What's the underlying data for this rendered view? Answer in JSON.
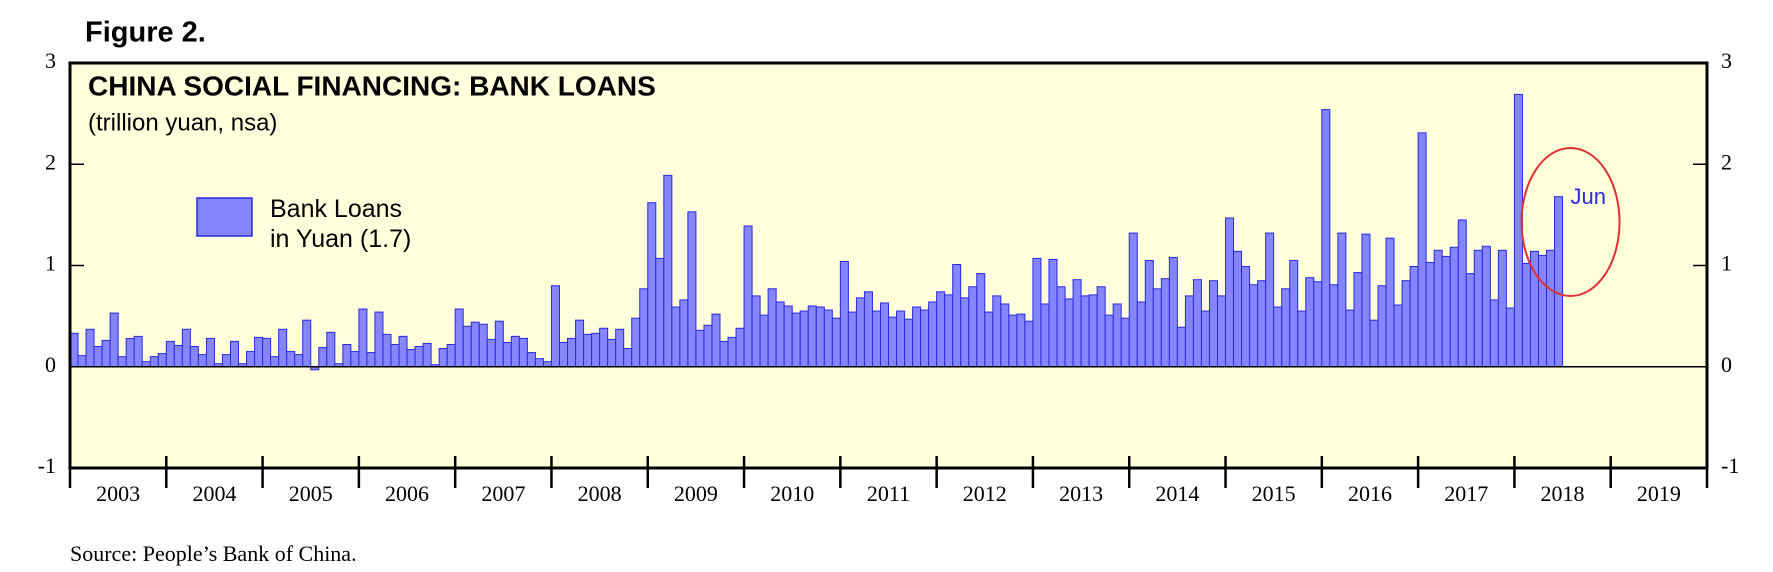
{
  "figure_label": "Figure 2.",
  "source": "Source: People’s Bank of China.",
  "chart_data": {
    "type": "bar",
    "title": "CHINA SOCIAL FINANCING: BANK LOANS",
    "subtitle": "(trillion yuan, nsa)",
    "annotation": "Jun",
    "year_labels": [
      "2003",
      "2004",
      "2005",
      "2006",
      "2007",
      "2008",
      "2009",
      "2010",
      "2011",
      "2012",
      "2013",
      "2014",
      "2015",
      "2016",
      "2017",
      "2018",
      "2019"
    ],
    "xlim": [
      2003,
      2020
    ],
    "xticks": [
      2003,
      2004,
      2005,
      2006,
      2007,
      2008,
      2009,
      2010,
      2011,
      2012,
      2013,
      2014,
      2015,
      2016,
      2017,
      2018,
      2019,
      2020
    ],
    "ylim": [
      -1,
      3
    ],
    "yticks": [
      -1,
      0,
      1,
      2,
      3
    ],
    "series": [
      {
        "name": "Bank Loans in Yuan (1.7)",
        "color": "#8585ff",
        "values": [
          0.33,
          0.11,
          0.37,
          0.2,
          0.26,
          0.53,
          0.1,
          0.28,
          0.3,
          0.05,
          0.1,
          0.13,
          0.25,
          0.21,
          0.37,
          0.2,
          0.12,
          0.28,
          0.03,
          0.12,
          0.25,
          0.03,
          0.15,
          0.29,
          0.28,
          0.1,
          0.37,
          0.15,
          0.12,
          0.46,
          -0.03,
          0.19,
          0.34,
          0.03,
          0.22,
          0.15,
          0.57,
          0.14,
          0.54,
          0.32,
          0.22,
          0.3,
          0.17,
          0.2,
          0.23,
          0.02,
          0.18,
          0.22,
          0.57,
          0.4,
          0.44,
          0.42,
          0.27,
          0.45,
          0.24,
          0.3,
          0.28,
          0.14,
          0.08,
          0.05,
          0.8,
          0.24,
          0.28,
          0.46,
          0.32,
          0.33,
          0.38,
          0.27,
          0.37,
          0.18,
          0.48,
          0.77,
          1.62,
          1.07,
          1.89,
          0.59,
          0.66,
          1.53,
          0.36,
          0.41,
          0.52,
          0.25,
          0.29,
          0.38,
          1.39,
          0.7,
          0.51,
          0.77,
          0.64,
          0.6,
          0.53,
          0.55,
          0.6,
          0.59,
          0.56,
          0.48,
          1.04,
          0.54,
          0.68,
          0.74,
          0.55,
          0.63,
          0.49,
          0.55,
          0.47,
          0.59,
          0.56,
          0.64,
          0.74,
          0.71,
          1.01,
          0.68,
          0.79,
          0.92,
          0.54,
          0.7,
          0.62,
          0.51,
          0.52,
          0.45,
          1.07,
          0.62,
          1.06,
          0.79,
          0.67,
          0.86,
          0.7,
          0.71,
          0.79,
          0.51,
          0.62,
          0.48,
          1.32,
          0.64,
          1.05,
          0.77,
          0.87,
          1.08,
          0.39,
          0.7,
          0.86,
          0.55,
          0.85,
          0.7,
          1.47,
          1.14,
          0.99,
          0.81,
          0.85,
          1.32,
          0.59,
          0.77,
          1.05,
          0.55,
          0.88,
          0.84,
          2.54,
          0.81,
          1.32,
          0.56,
          0.93,
          1.31,
          0.46,
          0.8,
          1.27,
          0.61,
          0.85,
          0.99,
          2.31,
          1.03,
          1.15,
          1.09,
          1.18,
          1.45,
          0.92,
          1.15,
          1.19,
          0.66,
          1.15,
          0.58,
          2.69,
          1.02,
          1.14,
          1.1,
          1.15,
          1.68
        ]
      }
    ]
  }
}
